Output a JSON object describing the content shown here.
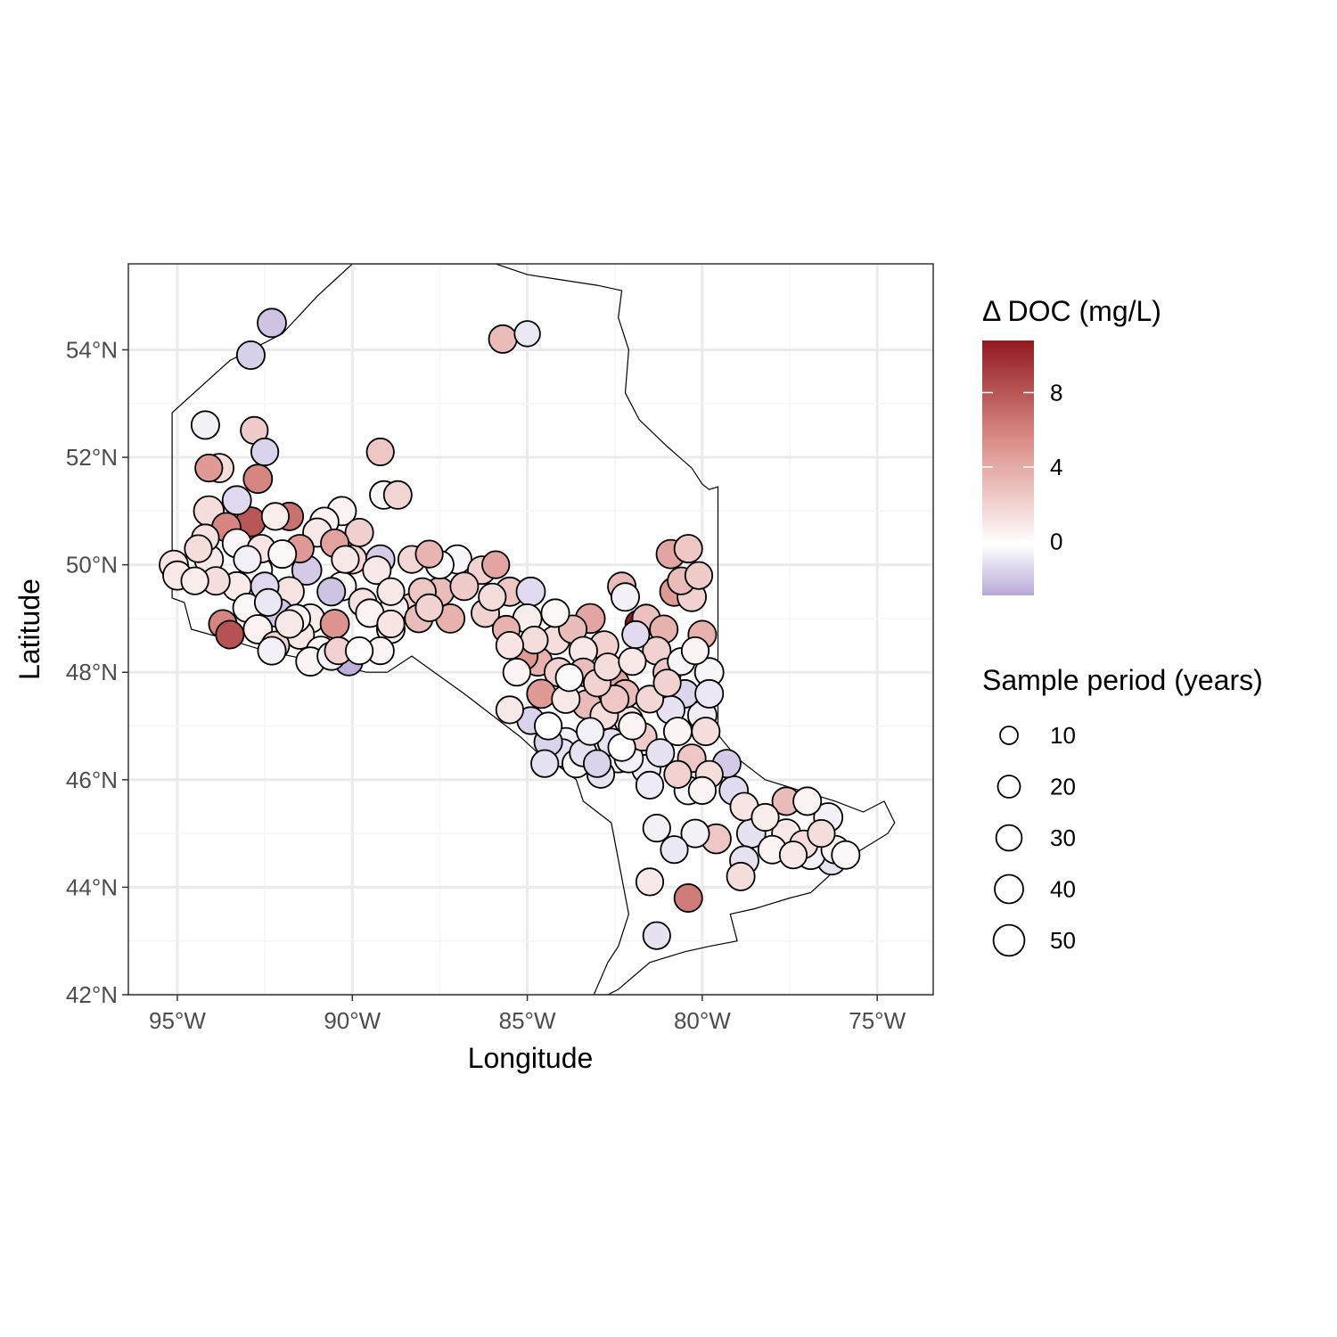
{
  "chart_data": {
    "type": "scatter",
    "subtype": "map-bubble",
    "xlabel": "Longitude",
    "ylabel": "Latitude",
    "xlim": [
      -96.4,
      -73.4
    ],
    "ylim": [
      42.0,
      55.6
    ],
    "x_ticks": [
      {
        "value": -95,
        "label": "95°W"
      },
      {
        "value": -90,
        "label": "90°W"
      },
      {
        "value": -85,
        "label": "85°W"
      },
      {
        "value": -80,
        "label": "80°W"
      },
      {
        "value": -75,
        "label": "75°W"
      }
    ],
    "y_ticks": [
      {
        "value": 42,
        "label": "42°N"
      },
      {
        "value": 44,
        "label": "44°N"
      },
      {
        "value": 46,
        "label": "46°N"
      },
      {
        "value": 48,
        "label": "48°N"
      },
      {
        "value": 50,
        "label": "50°N"
      },
      {
        "value": 52,
        "label": "52°N"
      },
      {
        "value": 54,
        "label": "54°N"
      }
    ],
    "grid": true,
    "color_legend": {
      "title": "Δ DOC (mg/L)",
      "breaks": [
        {
          "value": 8,
          "label": "8"
        },
        {
          "value": 4,
          "label": "4"
        },
        {
          "value": 0,
          "label": "0"
        }
      ],
      "range": [
        -2.9,
        10.8
      ],
      "low_color": "#b9a8d8",
      "mid_color": "#ffffff",
      "high_color": "#921a1f"
    },
    "size_legend": {
      "title": "Sample period (years)",
      "entries": [
        {
          "value": 10,
          "label": "10"
        },
        {
          "value": 20,
          "label": "20"
        },
        {
          "value": 30,
          "label": "30"
        },
        {
          "value": 40,
          "label": "40"
        },
        {
          "value": 50,
          "label": "50"
        }
      ]
    },
    "boundary": [
      [
        -95.15,
        52.83
      ],
      [
        -95.15,
        49.38
      ],
      [
        -94.8,
        49.3
      ],
      [
        -94.6,
        48.8
      ],
      [
        -93.5,
        48.6
      ],
      [
        -92.5,
        48.4
      ],
      [
        -91.0,
        48.2
      ],
      [
        -90.2,
        48.1
      ],
      [
        -89.6,
        48.0
      ],
      [
        -89.0,
        48.0
      ],
      [
        -88.3,
        48.3
      ],
      [
        -86.8,
        47.6
      ],
      [
        -85.2,
        46.8
      ],
      [
        -84.7,
        46.5
      ],
      [
        -84.2,
        46.3
      ],
      [
        -83.6,
        46.0
      ],
      [
        -83.4,
        45.6
      ],
      [
        -82.6,
        45.2
      ],
      [
        -82.1,
        43.5
      ],
      [
        -82.4,
        42.9
      ],
      [
        -82.7,
        42.6
      ],
      [
        -83.1,
        42.0
      ],
      [
        -82.7,
        42.0
      ],
      [
        -82.4,
        42.1
      ],
      [
        -81.5,
        42.6
      ],
      [
        -80.5,
        42.8
      ],
      [
        -79.8,
        42.9
      ],
      [
        -79.0,
        43.0
      ],
      [
        -79.2,
        43.5
      ],
      [
        -78.5,
        43.6
      ],
      [
        -77.5,
        43.8
      ],
      [
        -76.9,
        43.9
      ],
      [
        -76.4,
        44.2
      ],
      [
        -75.7,
        44.6
      ],
      [
        -74.7,
        45.0
      ],
      [
        -74.5,
        45.2
      ],
      [
        -74.8,
        45.6
      ],
      [
        -75.4,
        45.4
      ],
      [
        -76.2,
        45.6
      ],
      [
        -77.2,
        45.8
      ],
      [
        -78.2,
        46.0
      ],
      [
        -79.0,
        46.4
      ],
      [
        -79.5,
        46.8
      ],
      [
        -79.55,
        47.0
      ],
      [
        -79.55,
        51.45
      ],
      [
        -79.8,
        51.4
      ],
      [
        -80.0,
        51.5
      ],
      [
        -80.3,
        51.8
      ],
      [
        -81.0,
        52.2
      ],
      [
        -81.8,
        52.7
      ],
      [
        -82.2,
        53.2
      ],
      [
        -82.1,
        54.0
      ],
      [
        -82.4,
        54.6
      ],
      [
        -82.3,
        55.1
      ],
      [
        -83.0,
        55.2
      ],
      [
        -84.0,
        55.3
      ],
      [
        -85.0,
        55.4
      ],
      [
        -85.9,
        55.6
      ],
      [
        -90.0,
        55.6
      ],
      [
        -91.0,
        55.0
      ],
      [
        -92.0,
        54.3
      ],
      [
        -93.5,
        53.8
      ],
      [
        -95.15,
        52.83
      ]
    ],
    "points": [
      [
        -92.3,
        54.5,
        -2.0,
        30
      ],
      [
        -92.9,
        53.9,
        -1.6,
        28
      ],
      [
        -85.7,
        54.2,
        3.0,
        28
      ],
      [
        -85.0,
        54.3,
        -0.8,
        22
      ],
      [
        -94.2,
        52.6,
        -0.5,
        28
      ],
      [
        -92.8,
        52.5,
        2.3,
        26
      ],
      [
        -92.5,
        52.1,
        -1.5,
        26
      ],
      [
        -89.2,
        52.1,
        2.5,
        26
      ],
      [
        -93.8,
        51.8,
        1.5,
        30
      ],
      [
        -94.1,
        51.8,
        4.5,
        26
      ],
      [
        -92.7,
        51.6,
        5.5,
        30
      ],
      [
        -93.3,
        51.2,
        -1.3,
        30
      ],
      [
        -89.1,
        51.3,
        -0.3,
        28
      ],
      [
        -88.7,
        51.3,
        1.9,
        28
      ],
      [
        -94.1,
        51.0,
        1.5,
        34
      ],
      [
        -92.9,
        50.8,
        7.8,
        32
      ],
      [
        -91.8,
        50.9,
        6.5,
        28
      ],
      [
        -90.3,
        51.0,
        0.6,
        30
      ],
      [
        -90.8,
        50.8,
        0.6,
        30
      ],
      [
        -89.8,
        50.6,
        2.1,
        28
      ],
      [
        -94.2,
        50.5,
        1.3,
        26
      ],
      [
        -93.6,
        50.7,
        5.5,
        30
      ],
      [
        -91.5,
        50.3,
        4.5,
        28
      ],
      [
        -90.5,
        50.4,
        4.2,
        28
      ],
      [
        -93.3,
        50.4,
        0.4,
        30
      ],
      [
        -92.6,
        50.3,
        1.2,
        28
      ],
      [
        -90.0,
        50.1,
        1.8,
        30
      ],
      [
        -89.2,
        50.1,
        -1.7,
        30
      ],
      [
        -88.3,
        50.1,
        1.8,
        26
      ],
      [
        -87.8,
        50.2,
        3.3,
        26
      ],
      [
        -87.5,
        50.0,
        -0.2,
        28
      ],
      [
        -87.0,
        50.1,
        -0.3,
        30
      ],
      [
        -86.3,
        49.9,
        2.0,
        28
      ],
      [
        -85.9,
        50.0,
        4.0,
        26
      ],
      [
        -95.1,
        50.0,
        1.2,
        30
      ],
      [
        -95.0,
        49.8,
        1.0,
        30
      ],
      [
        -94.1,
        50.1,
        1.0,
        30
      ],
      [
        -92.7,
        49.9,
        -0.2,
        30
      ],
      [
        -91.3,
        49.9,
        -1.8,
        32
      ],
      [
        -90.3,
        49.6,
        0.3,
        30
      ],
      [
        -89.3,
        49.9,
        1.0,
        28
      ],
      [
        -88.0,
        49.5,
        2.5,
        26
      ],
      [
        -87.5,
        49.5,
        3.0,
        30
      ],
      [
        -86.8,
        49.6,
        2.3,
        28
      ],
      [
        -92.5,
        49.6,
        -1.3,
        28
      ],
      [
        -91.8,
        49.5,
        1.3,
        32
      ],
      [
        -90.6,
        49.5,
        -2.0,
        28
      ],
      [
        -89.7,
        49.3,
        1.3,
        28
      ],
      [
        -88.8,
        49.2,
        0.6,
        28
      ],
      [
        -88.3,
        49.2,
        2.0,
        30
      ],
      [
        -93.3,
        49.6,
        0.9,
        30
      ],
      [
        -93.0,
        49.2,
        0.3,
        30
      ],
      [
        -92.1,
        49.1,
        -2.0,
        30
      ],
      [
        -91.2,
        49.0,
        0.8,
        30
      ],
      [
        -90.5,
        48.9,
        4.8,
        30
      ],
      [
        -89.5,
        49.1,
        0.5,
        28
      ],
      [
        -88.9,
        48.8,
        0.5,
        28
      ],
      [
        -88.1,
        49.0,
        3.0,
        28
      ],
      [
        -87.2,
        49.0,
        3.5,
        30
      ],
      [
        -86.2,
        49.1,
        2.0,
        28
      ],
      [
        -93.7,
        48.9,
        5.5,
        28
      ],
      [
        -93.5,
        48.7,
        8.0,
        28
      ],
      [
        -92.7,
        48.8,
        0.6,
        30
      ],
      [
        -92.2,
        48.5,
        2.0,
        28
      ],
      [
        -91.5,
        48.7,
        1.0,
        30
      ],
      [
        -90.9,
        48.4,
        0.4,
        30
      ],
      [
        -90.4,
        48.4,
        2.0,
        26
      ],
      [
        -90.1,
        48.2,
        -2.7,
        28
      ],
      [
        -92.3,
        48.4,
        -0.5,
        28
      ],
      [
        -91.2,
        48.2,
        0.5,
        30
      ],
      [
        -89.2,
        48.4,
        0.5,
        26
      ],
      [
        -85.5,
        49.5,
        2.5,
        30
      ],
      [
        -84.9,
        49.5,
        -1.2,
        30
      ],
      [
        -85.0,
        49.0,
        0.8,
        30
      ],
      [
        -85.6,
        48.8,
        3.5,
        26
      ],
      [
        -84.8,
        48.6,
        1.5,
        26
      ],
      [
        -83.7,
        48.8,
        3.0,
        28
      ],
      [
        -83.2,
        49.0,
        4.0,
        32
      ],
      [
        -84.2,
        48.6,
        1.5,
        30
      ],
      [
        -83.4,
        48.4,
        1.0,
        28
      ],
      [
        -82.8,
        48.5,
        2.0,
        30
      ],
      [
        -85.1,
        48.3,
        4.5,
        28
      ],
      [
        -84.7,
        48.2,
        3.5,
        30
      ],
      [
        -84.1,
        48.0,
        2.0,
        30
      ],
      [
        -83.4,
        48.0,
        3.0,
        28
      ],
      [
        -82.9,
        47.9,
        2.0,
        30
      ],
      [
        -82.5,
        47.8,
        4.0,
        30
      ],
      [
        -82.2,
        47.6,
        3.0,
        28
      ],
      [
        -85.3,
        48.0,
        0.5,
        26
      ],
      [
        -84.6,
        47.6,
        4.5,
        30
      ],
      [
        -83.9,
        47.5,
        1.0,
        28
      ],
      [
        -83.3,
        47.4,
        3.0,
        30
      ],
      [
        -82.8,
        47.2,
        1.5,
        28
      ],
      [
        -82.1,
        47.1,
        1.0,
        30
      ],
      [
        -81.8,
        48.9,
        10.8,
        28
      ],
      [
        -81.9,
        48.7,
        -1.2,
        26
      ],
      [
        -81.6,
        49.0,
        2.8,
        28
      ],
      [
        -82.3,
        49.6,
        3.0,
        28
      ],
      [
        -82.2,
        49.4,
        -0.5,
        28
      ],
      [
        -81.1,
        48.8,
        3.5,
        28
      ],
      [
        -80.8,
        49.5,
        4.5,
        30
      ],
      [
        -80.6,
        49.7,
        3.0,
        26
      ],
      [
        -80.3,
        49.4,
        2.0,
        30
      ],
      [
        -80.4,
        50.3,
        2.5,
        28
      ],
      [
        -80.9,
        50.2,
        4.0,
        30
      ],
      [
        -80.1,
        49.8,
        2.3,
        26
      ],
      [
        -81.3,
        48.4,
        2.0,
        28
      ],
      [
        -81.0,
        48.0,
        2.5,
        28
      ],
      [
        -80.6,
        48.2,
        -0.3,
        26
      ],
      [
        -79.8,
        48.0,
        -0.3,
        30
      ],
      [
        -80.0,
        48.7,
        3.5,
        28
      ],
      [
        -80.5,
        47.6,
        -1.4,
        28
      ],
      [
        -80.9,
        47.3,
        -1.0,
        28
      ],
      [
        -81.5,
        47.5,
        1.8,
        26
      ],
      [
        -80.0,
        47.2,
        -0.6,
        30
      ],
      [
        -79.9,
        46.9,
        1.5,
        28
      ],
      [
        -80.7,
        46.9,
        0.5,
        28
      ],
      [
        -81.7,
        46.8,
        2.3,
        28
      ],
      [
        -81.2,
        46.5,
        -1.0,
        28
      ],
      [
        -81.6,
        46.2,
        -0.6,
        30
      ],
      [
        -82.4,
        46.4,
        -0.3,
        30
      ],
      [
        -82.9,
        46.1,
        -1.0,
        26
      ],
      [
        -83.4,
        46.5,
        -1.0,
        26
      ],
      [
        -84.0,
        46.5,
        -1.0,
        28
      ],
      [
        -84.4,
        46.7,
        -1.5,
        28
      ],
      [
        -84.9,
        47.1,
        -1.5,
        26
      ],
      [
        -84.4,
        47.0,
        0.0,
        26
      ],
      [
        -83.9,
        46.7,
        -0.5,
        30
      ],
      [
        -82.6,
        46.7,
        -1.0,
        26
      ],
      [
        -82.1,
        46.4,
        -0.5,
        30
      ],
      [
        -80.3,
        46.4,
        2.5,
        28
      ],
      [
        -79.8,
        46.1,
        1.5,
        26
      ],
      [
        -79.3,
        46.3,
        -1.8,
        28
      ],
      [
        -79.1,
        45.8,
        -1.2,
        30
      ],
      [
        -80.0,
        45.8,
        0.5,
        26
      ],
      [
        -80.4,
        45.8,
        -0.3,
        28
      ],
      [
        -78.8,
        45.5,
        1.2,
        28
      ],
      [
        -77.6,
        45.6,
        3.0,
        28
      ],
      [
        -77.0,
        45.6,
        0.5,
        28
      ],
      [
        -76.4,
        45.3,
        -0.5,
        30
      ],
      [
        -77.6,
        45.0,
        1.0,
        30
      ],
      [
        -78.6,
        45.0,
        -1.0,
        30
      ],
      [
        -78.0,
        44.7,
        0.5,
        28
      ],
      [
        -77.1,
        44.8,
        1.5,
        28
      ],
      [
        -76.2,
        44.7,
        0.5,
        28
      ],
      [
        -75.9,
        44.6,
        0.3,
        28
      ],
      [
        -76.3,
        44.5,
        -1.0,
        30
      ],
      [
        -76.9,
        44.6,
        -0.5,
        30
      ],
      [
        -78.8,
        44.5,
        -1.0,
        30
      ],
      [
        -79.6,
        44.9,
        2.5,
        32
      ],
      [
        -80.2,
        45.0,
        -0.5,
        28
      ],
      [
        -78.9,
        44.2,
        1.5,
        28
      ],
      [
        -81.3,
        45.1,
        -0.5,
        26
      ],
      [
        -80.8,
        44.7,
        -0.8,
        26
      ],
      [
        -81.5,
        44.1,
        1.0,
        26
      ],
      [
        -80.4,
        43.8,
        6.0,
        28
      ],
      [
        -81.3,
        43.1,
        -1.0,
        26
      ],
      [
        -83.0,
        47.8,
        2.0,
        26
      ],
      [
        -82.5,
        47.5,
        2.5,
        28
      ],
      [
        -83.6,
        46.3,
        0.3,
        28
      ],
      [
        -92.0,
        50.2,
        0.3,
        28
      ],
      [
        -91.0,
        50.6,
        1.0,
        30
      ],
      [
        -93.9,
        49.7,
        1.5,
        28
      ],
      [
        -94.5,
        49.7,
        0.8,
        26
      ],
      [
        -94.4,
        50.3,
        1.5,
        26
      ],
      [
        -92.2,
        50.9,
        0.8,
        26
      ],
      [
        -86.0,
        49.4,
        1.5,
        26
      ],
      [
        -84.2,
        49.1,
        0.3,
        28
      ],
      [
        -82.7,
        48.1,
        1.5,
        26
      ],
      [
        -82.0,
        48.2,
        1.0,
        26
      ],
      [
        -80.2,
        48.4,
        0.5,
        26
      ],
      [
        -79.8,
        47.6,
        -0.8,
        28
      ],
      [
        -82.3,
        46.6,
        0.0,
        26
      ],
      [
        -83.2,
        46.9,
        -0.5,
        26
      ],
      [
        -83.8,
        47.9,
        -0.2,
        26
      ],
      [
        -85.5,
        47.3,
        1.0,
        26
      ],
      [
        -90.6,
        48.3,
        -0.5,
        28
      ],
      [
        -89.8,
        48.4,
        0.2,
        26
      ],
      [
        -88.9,
        49.5,
        1.0,
        26
      ],
      [
        -87.8,
        49.2,
        2.0,
        26
      ],
      [
        -90.2,
        50.1,
        1.0,
        26
      ],
      [
        -91.6,
        49.0,
        0.5,
        28
      ],
      [
        -93.0,
        50.1,
        -0.5,
        26
      ],
      [
        -92.4,
        49.3,
        -0.8,
        26
      ],
      [
        -91.8,
        48.9,
        1.0,
        28
      ],
      [
        -88.9,
        48.9,
        1.2,
        26
      ],
      [
        -81.5,
        45.9,
        -0.7,
        26
      ],
      [
        -80.7,
        46.1,
        2.0,
        26
      ],
      [
        -78.2,
        45.3,
        0.8,
        26
      ],
      [
        -77.4,
        44.6,
        1.0,
        26
      ],
      [
        -76.6,
        45.0,
        1.5,
        26
      ],
      [
        -85.5,
        48.5,
        1.2,
        26
      ],
      [
        -84.5,
        46.3,
        -1.0,
        26
      ],
      [
        -83.0,
        46.3,
        -1.5,
        26
      ],
      [
        -82.0,
        47.0,
        0.5,
        26
      ],
      [
        -81.0,
        47.8,
        2.0,
        26
      ]
    ]
  }
}
